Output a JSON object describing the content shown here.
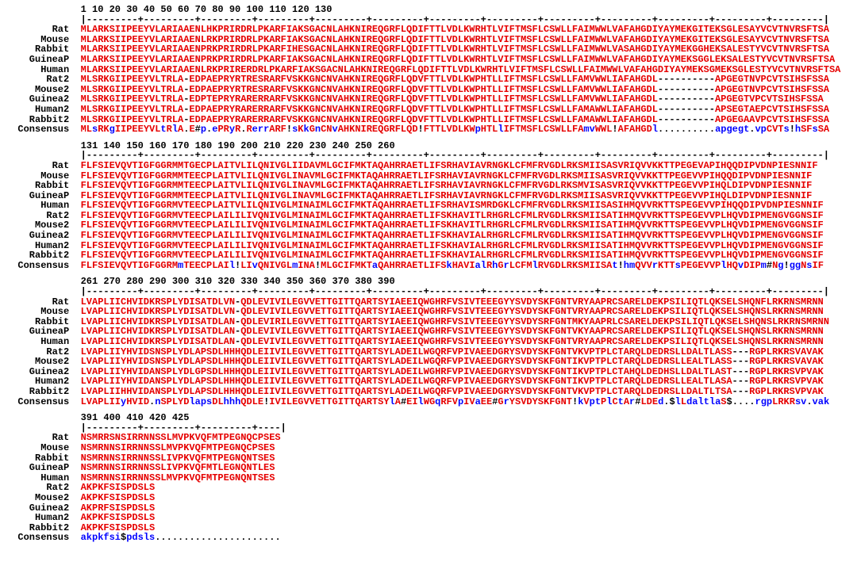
{
  "colors": {
    "red": "#e60000",
    "blue": "#0000ff",
    "black": "#000000"
  },
  "names": [
    "Rat",
    "Mouse",
    "Rabbit",
    "GuineaP",
    "Human",
    "Rat2",
    "Mouse2",
    "Guinea2",
    "Human2",
    "Rabbit2",
    "Consensus"
  ],
  "blocks": [
    {
      "ruler_nums": "1         10        20        30        40        50        60        70        80        90       100       110       120       130",
      "ruler_ticks": "|---------+---------+---------+---------+---------+---------+---------+---------+---------+---------+---------+---------+---------|",
      "seqs": [
        "MLARKSIIPEEYVLARIAAENLHKPRIRDRLPKARFIAKSGACNLAHKNIREQGRFLQDIFTTLVDLKWRHTLVIFTMSFLCSWLLFAIMWWLVAFAHGDIYAYMEKGITEKSGLESAYVCVTNVRSFTSA",
        "MLARKSIIPEEYVLARIAAENLRKPRIRDRLPKARFIAKSGACNLAHKNIREQGRFLQDIFTTLVDLKWRHTLVIFTMSFLCSWLLFAIMWWLVAFAHGDIYAYMEKGITEKSGLESAYVCVTNVRSFTSA",
        "MLARKSIIPEEYVLARIAAENPRKPRIRDRLPKARFIHESGACNLAHKNIREQGRFLQDIFTTLVDLKWRHTLVIFTMSFLCSWLLFAIMWWLVASAHGDIYAYMEKGGHEKSALESTYVCVTNVRSFTSA",
        "MLARKSIIPEEYVLARIAAENPRKPRIRDRLPKARFIAKSGACNLAHKNIREQGRFLQDIFTTLVDLKWRHTLVIFTMSFLCSWLLFAIMWWLVAFAHGDIYAYMEKSGGLEKSALESTYVCVTNVRSFTSA",
        "MLARKSIIPEEYVLARIAAENLRKPRIRERDRLPKARFIAKSGACNLAHKNIREQGRFLQDIFTTLVDLKWRHTLVIFTMSFLCSWLLFAIMWWLVAFAHGDIYAYMEKSGMEKSGLESTYVCVTNVRSFTSA",
        "MLSRKGIIPEEYVLTRLA-EDPAEPRYRTRESRARFVSKKGNCNVAHKNIREQGRFLQDVFTTLVDLKWPHTLLIFTMSFLCSWLLFAMVWWLIAFAHGDL----------APGEGTNVPCVTSIHSFSSA",
        "MLSRKGIIPEEYVLTRLA-EDPAEPRYRTRESRARFVSKKGNCNVAHKNIREQGRFLQDVFTTLVDLKWPHTLLIFTMSFLCSWLLFAMVWWLIAFAHGDL----------APGEGTNVPCVTSIHSFSSA",
        "MLSRKGIIPEEYVLTRLA-EDPTEPRYRARERRARFVSKKGNCNVAHKNIREQGRFLQDVFTTLVDLKWPHTLLIFTMSFLCSWLLFAMVWWLIAFAHGDL----------APGEGTVPCVTSIHSFSSA",
        "MLSRKGIIPEEYVLTRLA-EDPAEPRYRARERRARFVSKKGNCNVAHKNIREQGRFLQDVFTTLVDLKWPHTLLIFTMSFLCSWLLFAMAWWLIAFAHGDL----------APSEGTAEPCVTSIHSFSSA",
        "MLSRKGIIPEEYVLTRLA-EDPAEPRYRARERRARFVSKKGNCNVAHKNIREQGRFLQDVFTTLVDLKWPHTLLIFTMSFLCSWLLFAMAWWLIAFAHGDL----------APGEGAAVPCVTSIHSFSSA",
        "MLsRKgIIPEEYVLtRlA.E#p.ePRyR.RerrARF!sKkGnCNvAHKNIREQGRFLQD!FTTLVDLKWpHTLlIFTMSFLCSWLLFAmvWWL!AFAHGDl..........apgegt.vpCVTs!hSFsSA"
      ]
    },
    {
      "ruler_nums": "131       140       150       160       170       180       190       200       210       220       230       240       250       260",
      "ruler_ticks": "|---------+---------+---------+---------+---------+---------+---------+---------+---------+---------+---------+---------+---------|",
      "seqs": [
        "FLFSIEVQVTIGFGGRMMTGECPLAITVLILQNIVGLIIDAVMLGCIFMKTAQAHRRAETLIFSRHAVIAVRNGKLCFMFRVGDLRKSMIISASVRIQVVKKTTPEGEVAPIHQQDIPVDNPIESNNIF",
        "FLFSIEVQVTIGFGGRMMTEECPLAITVLILQNIVGLINAVMLGCIFMKTAQAHRRAETLIFSRHAVIAVRNGKLCFMFRVGDLRKSMIISASVRIQVVKKTTPEGEVVPIHQQDIPVDNPIESNNIF",
        "FLFSIEVQVTIGFGGRMMTEECPLAITVLILQNIVGLINAVMLGCIFMKTAQAHRRAETLIFSRHAVIAVRNGKLCFMFRVGDLRKSMVISASVRIQVVKKTTPEGEVVPIHQLDIPVDNPIESNNIF",
        "FLFSIEVQVTIGFGGRMMTEECPLAITVLILQNIVGLINAVMLGCIFMKTAQAHRRAETLIFSRHAVIAVRNGKLCFMFRVGDLRKSMIISASVRIQVVKKTTPEGEVVPIHQLDIPVDNPIESNNIF",
        "FLFSIEVQVTIGFGGRMVTEECPLAITVLILQNIVGLMINAIMLGCIFMKTAQAHRRAETLIFSRHAVISMRDGKLCFMFRVGDLRKSMIISASIHMQVVRKTTSPEGEVVPIHQQDIPVDNPIESNNIF",
        "FLFSIEVQVTIGFGGRMVTEECPLAILILIVQNIVGLMINAIMLGCIFMKTAQAHRRAETLIFSKHAVITLRHGRLCFMLRVGDLRKSMIISATIHMQVVRKTTSPEGEVVPLHQVDIPMENGVGGNSIF",
        "FLFSIEVQVTIGFGGRMVTEECPLAILILIVQNIVGLMINAIMLGCIFMKTAQAHRRAETLIFSKHAVITLRHGRLCFMLRVGDLRKSMIISATIHMQVVRKTTSPEGEVVPLHQVDIPMENGVGGNSIF",
        "FLFSIEVQVTIGFGGRMVTEECPLAILILIVQNIVGLMINAIMLGCIFMKTAQAHRRAETLIFSKHAVIALRHGRLCFMLRVGDLRKSMIISATIHMQVVRKTTSPEGEVVPLHQVDIPMENGVGGNSIF",
        "FLFSIEVQVTIGFGGRMVTEECPLAILILIVQNIVGLMINAIMLGCIFMKTAQAHRRAETLIFSKHAVIALRHGRLCFMLRVGDLRKSMIISATIHMQVVRKTTSPEGEVVPLHQVDIPMENGVGGNSIF",
        "FLFSIEVQVTIGFGGRMVTEECPLAILILIVQNIVGLMINAIMLGCIFMKTAQAHRRAETLIFSKHAVIALRHGRLCFMLRVGDLRKSMIISATIHMQVVRKTTSPEGEVVPLHQVDIPMENGVGGNSIF",
        "FLFSIEVQVTIGFGGRMmTEECPLAIl!LIvQNIVGLmINA!MLGCIFMKTaQAHRRAETLIFSkHAVIalRhGrLCFMlRVGDLRKSMIISAt!hmQVVrKTTsPEGEVVPlHQvDIPm#Ng!ggNsIF"
      ]
    },
    {
      "ruler_nums": "261       270       280       290       300       310       320       330       340       350       360       370       380       390",
      "ruler_ticks": "|---------+---------+---------+---------+---------+---------+---------+---------+---------+---------+---------+---------+---------|",
      "seqs": [
        "LVAPLIICHVIDKRSPLYDISATDLVN-QDLEVIVILEGVVETTGITTQARTSYIAEEIQWGHRFVSIVTEEEGYYSVDYSKFGNTVRYAAPRCSARELDEKPSILIQTLQKSELSHQNFLRKRNSMRNN",
        "LVAPLIICHVIDKRSPLYDISATDLVN-QDLEVIVILEGVVETTGITTQARTSYIAEEIQWGHRFVSIVTEEEGYYSVDYSKFGNTVRYAAPRCSARELDEKPSILIQTLQKSELSHQNSLRKRNSMRNN",
        "LVAPLIICHVIDKRSPLYDISATDLAN-QDLEVIRILEGVVETTGITTQARTSYIAEEIQWGHRFVSIVTEEEGYYSVDYSRFGNTMKYAAPRLCSARELDEKPSILIQTLQKSELSHQNSLRKRNSMRNN",
        "LVAPLIICHVIDKRSPLYDISATDLAN-QDLEVIVILEGVVETTGITTQARTSYIAEEIQWGHRFVSIVTEEEGYYSVDYSKFGNTVKYAAPRCSARELDEKPSILIQTLQKSELSHQNSLRKRNSMRNN",
        "LVAPLIICHVIDKRSPLYDISATDLAN-QDLEVIVILEGVVETTGITTQARTSYIAEEIQWGHRFVSIVTEEEGYYSVDYSKFGNTVRYAAPRCSARELDEKPSILIQTLQKSELSHQNSLRKRNSMRNN",
        "LVAPLIIYHVIDSNSPLYDLAPSDLHHHQDLEIIVILEGVVETTGITTQARTSYLADEILWGQRFVPIVAEEDGRYSVDYSKFGNTVKVPTPLCTARQLDEDRSLLDALTLASS---RGPLRKRSVAVAK",
        "LVAPLIIYHVIDSNSPLYDLAPSDLHHHQDLEIIVILEGVVETTGITTQARTSYLADEILWGQRFVPIVAEEDGRYSVDYSKFGNTIKVPTPLCTARQLDEDRSLLEALTLASS---RGPLRKRSVAVAK",
        "LVAPLIIYHVIDANSPLYDLGPSDLHHHQDLEIIVILEGVVETTGITTQARTSYLADEILWGHRFVPIVAEEDGRYSVDYSKFGNTIKVPTPLCTAHQLDEDHSLLDALTLAST---RGPLRKRSVPVAK",
        "LVAPLIIYHVIDANSPLYDLAPSDLHHHQDLEIIVILEGVVETTGITTQARTSYLADEILWGQRFVPIVAEEDGRYSVDYSKFGNTIKVPTPLCTARQLDEDRSLLEALTLASA---RGPLRKRSVPVAK",
        "LVAPLIIHHVIDANSPLYDLAPSDLHHHQDLEIIVILEGVVETTGITTQARTSYLADEILWGQRFVPIVAEEDGRYSVDYSKFGNTVKVPTPLCTARQLDEDRSLLDALTLTSA---RGPLRKRSVPVAK",
        "LVAPLIIyHVID.nSPLYDlapsDLhhhQDLE!IVILEGVVETTGITTQARTSYlA#EIlWGqRFVpIVaEE#GrYSVDYSKFGNT!kVptPlCtAr#LDEd.$lLdaltlaS$....rgpLRKRsv.vak"
      ]
    },
    {
      "ruler_nums": "391       400       410       420  425",
      "ruler_ticks": "|---------+---------+---------+----|",
      "seqs": [
        "NSMRRSNSIRRNNSSLMVPKVQFMTPEGNQCPSES",
        "NSMRNNSIRRNNSSLMVPKVQFMTPEGNQCPSES",
        "NSMRNNSIRRNNSSLIVPKVQFMTPEGNQNTSES",
        "NSMRNNSIRRNNSSLIVPKVQFMTLEGNQNTLES",
        "NSMRNNSIRRNNSSLMVPKVQFMTPEGNQNTSES",
        "AKPKFSISPDSLS",
        "AKPKFSISPDSLS",
        "AKPRFSISPDSLS",
        "AKPKFSISPDSLS",
        "AKPKFSISPDSLS",
        "akpkfsi$pdsls......................"
      ]
    }
  ]
}
